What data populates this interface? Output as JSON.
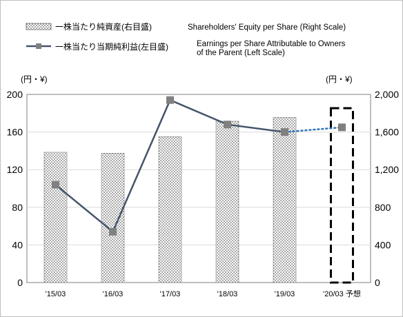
{
  "chart_data": {
    "type": "bar+line",
    "categories": [
      "'15/03",
      "'16/03",
      "'17/03",
      "'18/03",
      "'19/03",
      "'20/03 予想"
    ],
    "legend": {
      "bar_jp": "一株当たり純資産(右目盛)",
      "bar_en": "Shareholders' Equity per Share (Right Scale)",
      "line_jp": "一株当たり当期純利益(左目盛)",
      "line_en_1": "Earnings per Share Attributable to Owners",
      "line_en_2": "of the Parent (Left Scale)"
    },
    "left_axis": {
      "unit": "(円・¥)",
      "min": 0,
      "max": 200,
      "ticks": [
        "0",
        "40",
        "80",
        "120",
        "160",
        "200"
      ]
    },
    "right_axis": {
      "unit": "(円・¥)",
      "min": 0,
      "max": 2000,
      "ticks": [
        "0",
        "400",
        "800",
        "1,200",
        "1,600",
        "2,000"
      ]
    },
    "series": [
      {
        "kind": "bar",
        "axis": "right",
        "values": [
          1385,
          1375,
          1550,
          1715,
          1755,
          null
        ]
      },
      {
        "kind": "line",
        "axis": "left",
        "values": [
          104,
          54,
          194,
          168,
          160,
          165
        ],
        "forecast_from_index": 4
      }
    ],
    "forecast_index": 5,
    "colors": {
      "line": "#44546A",
      "marker": "#808080",
      "forecast_line": "#2E75B6",
      "bar_dots": "#333333"
    }
  }
}
